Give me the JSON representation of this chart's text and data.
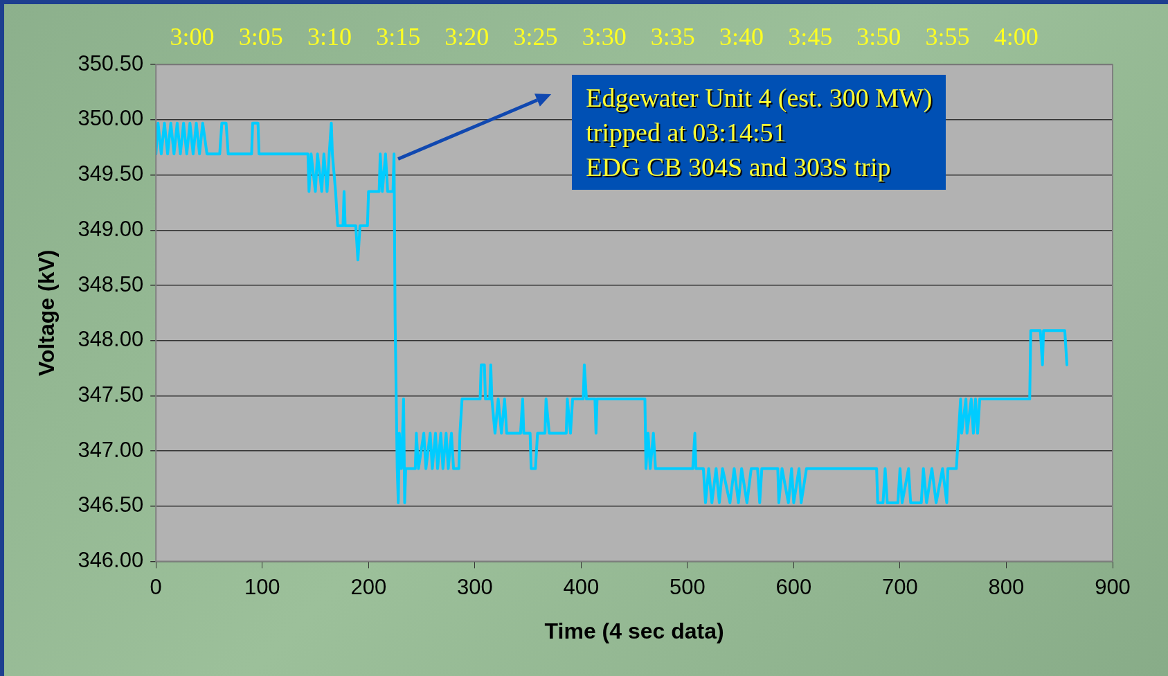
{
  "chart_data": {
    "type": "line",
    "xlabel": "Time (4 sec data)",
    "ylabel": "Voltage (kV)",
    "xlim": [
      0,
      900
    ],
    "xticks": [
      0,
      100,
      200,
      300,
      400,
      500,
      600,
      700,
      800,
      900
    ],
    "ylim": [
      346,
      350.5
    ],
    "yticks": [
      {
        "value": 346,
        "label": "346.00"
      },
      {
        "value": 346.5,
        "label": "346.50"
      },
      {
        "value": 347,
        "label": "347.00"
      },
      {
        "value": 347.5,
        "label": "347.50"
      },
      {
        "value": 348,
        "label": "348.00"
      },
      {
        "value": 348.5,
        "label": "348.50"
      },
      {
        "value": 349,
        "label": "349.00"
      },
      {
        "value": 349.5,
        "label": "349.50"
      },
      {
        "value": 350,
        "label": "350.00"
      },
      {
        "value": 350.5,
        "label": "350.50"
      }
    ],
    "x2lim": [
      2.956,
      4.117
    ],
    "x2ticks": [
      {
        "value": 3,
        "label": "3:00"
      },
      {
        "value": 3.0833,
        "label": "3:05"
      },
      {
        "value": 3.1667,
        "label": "3:10"
      },
      {
        "value": 3.25,
        "label": "3:15"
      },
      {
        "value": 3.3333,
        "label": "3:20"
      },
      {
        "value": 3.4167,
        "label": "3:25"
      },
      {
        "value": 3.5,
        "label": "3:30"
      },
      {
        "value": 3.5833,
        "label": "3:35"
      },
      {
        "value": 3.6667,
        "label": "3:40"
      },
      {
        "value": 3.75,
        "label": "3:45"
      },
      {
        "value": 3.8333,
        "label": "3:50"
      },
      {
        "value": 3.9167,
        "label": "3:55"
      },
      {
        "value": 4,
        "label": "4:00"
      }
    ],
    "grid": "y",
    "legend": false,
    "marker": "none",
    "line_style": "solid",
    "annotations": [
      "Edgewater Unit 4 (est. 300 MW)\ntripped at 03:14:51\nEDG CB 304S and 303S trip"
    ],
    "series": [
      {
        "color": "#00ccff",
        "x": [
          0,
          2,
          5,
          8,
          11,
          14,
          17,
          20,
          23,
          26,
          29,
          32,
          35,
          38,
          41,
          44,
          48,
          60,
          62,
          66,
          68,
          90,
          91,
          96,
          97,
          143,
          144,
          146,
          150,
          152,
          156,
          158,
          161,
          163,
          165,
          166,
          169,
          171,
          176,
          177,
          178,
          188,
          190,
          192,
          199,
          200,
          210,
          211,
          213,
          216,
          218,
          223,
          224,
          225,
          227,
          228,
          229,
          231,
          233,
          234,
          235,
          244,
          245,
          247,
          252,
          254,
          258,
          260,
          263,
          265,
          268,
          270,
          273,
          275,
          278,
          280,
          285,
          286,
          288,
          305,
          306,
          309,
          310,
          314,
          315,
          316,
          319,
          322,
          325,
          328,
          330,
          343,
          345,
          346,
          352,
          353,
          357,
          359,
          366,
          367,
          370,
          386,
          387,
          390,
          392,
          402,
          403,
          405,
          413,
          414,
          415,
          460,
          461,
          463,
          465,
          468,
          470,
          505,
          507,
          508,
          515,
          517,
          520,
          523,
          527,
          530,
          533,
          540,
          544,
          548,
          551,
          556,
          560,
          566,
          568,
          570,
          585,
          586,
          589,
          595,
          598,
          600,
          605,
          607,
          612,
          678,
          679,
          684,
          686,
          688,
          698,
          700,
          702,
          708,
          710,
          720,
          722,
          725,
          730,
          734,
          740,
          744,
          745,
          753,
          755,
          757,
          758,
          762,
          763,
          767,
          769,
          771,
          773,
          775,
          822,
          823,
          832,
          834,
          835,
          855,
          857
        ],
        "values": [
          349.69,
          349.97,
          349.69,
          349.97,
          349.69,
          349.97,
          349.69,
          349.97,
          349.69,
          349.97,
          349.69,
          349.97,
          349.69,
          349.97,
          349.69,
          349.97,
          349.69,
          349.69,
          349.97,
          349.97,
          349.69,
          349.69,
          349.97,
          349.97,
          349.69,
          349.69,
          349.35,
          349.69,
          349.35,
          349.69,
          349.35,
          349.69,
          349.35,
          349.69,
          349.97,
          349.69,
          349.35,
          349.04,
          349.04,
          349.35,
          349.04,
          349.04,
          348.73,
          349.04,
          349.04,
          349.35,
          349.35,
          349.69,
          349.35,
          349.69,
          349.35,
          349.35,
          349.69,
          348.2,
          346.84,
          346.53,
          347.16,
          346.84,
          347.47,
          346.53,
          346.84,
          346.84,
          347.16,
          346.84,
          347.16,
          346.84,
          347.16,
          346.84,
          347.16,
          346.84,
          347.16,
          346.84,
          347.16,
          346.84,
          347.16,
          346.84,
          346.84,
          347.16,
          347.47,
          347.47,
          347.78,
          347.78,
          347.47,
          347.47,
          347.78,
          347.47,
          347.16,
          347.47,
          347.16,
          347.47,
          347.16,
          347.16,
          347.47,
          347.16,
          347.16,
          346.84,
          346.84,
          347.16,
          347.16,
          347.47,
          347.16,
          347.16,
          347.47,
          347.16,
          347.47,
          347.47,
          347.78,
          347.47,
          347.47,
          347.16,
          347.47,
          347.47,
          346.84,
          347.16,
          346.84,
          347.16,
          346.84,
          346.84,
          347.16,
          346.84,
          346.84,
          346.53,
          346.84,
          346.53,
          346.84,
          346.53,
          346.84,
          346.53,
          346.84,
          346.53,
          346.84,
          346.53,
          346.84,
          346.84,
          346.53,
          346.84,
          346.84,
          346.53,
          346.84,
          346.53,
          346.84,
          346.53,
          346.84,
          346.53,
          346.84,
          346.84,
          346.53,
          346.53,
          346.84,
          346.53,
          346.53,
          346.84,
          346.53,
          346.84,
          346.53,
          346.53,
          346.84,
          346.53,
          346.84,
          346.53,
          346.84,
          346.53,
          346.84,
          346.84,
          347.16,
          347.47,
          347.16,
          347.47,
          347.16,
          347.47,
          347.16,
          347.47,
          347.16,
          347.47,
          347.47,
          348.09,
          348.09,
          347.78,
          348.09,
          348.09,
          347.78
        ]
      }
    ]
  }
}
